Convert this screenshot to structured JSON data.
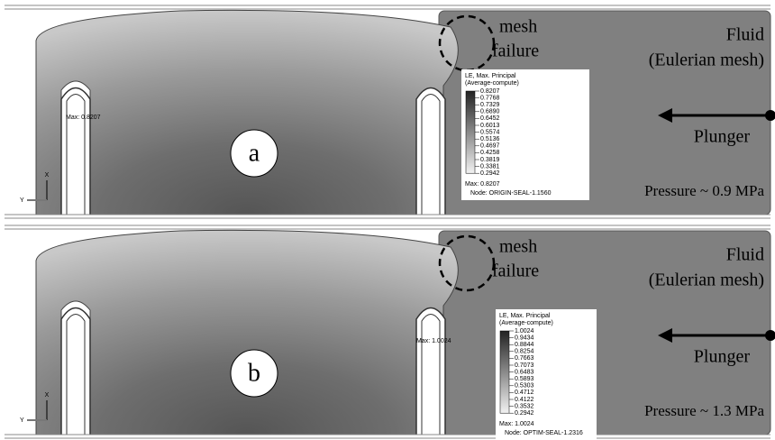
{
  "panels": [
    {
      "label": "a",
      "mesh": [
        "mesh",
        "failure"
      ],
      "fluid": [
        "Fluid",
        "(Eulerian mesh)"
      ],
      "plunger": "Plunger",
      "pressure": "Pressure ~ 0.9 MPa",
      "legend": {
        "title": [
          "LE, Max. Principal",
          "(Average-compute)"
        ],
        "values": [
          "0.8207",
          "0.7768",
          "0.7329",
          "0.6890",
          "0.6452",
          "0.6013",
          "0.5574",
          "0.5136",
          "0.4697",
          "0.4258",
          "0.3819",
          "0.3381",
          "0.2942"
        ],
        "max": "Max: 0.8207",
        "node": "Node: ORIGIN-SEAL-1.1560"
      },
      "max_marker": "Max: 0.8207",
      "axes": [
        "X",
        "Y"
      ]
    },
    {
      "label": "b",
      "mesh": [
        "mesh",
        "failure"
      ],
      "fluid": [
        "Fluid",
        "(Eulerian mesh)"
      ],
      "plunger": "Plunger",
      "pressure": "Pressure ~ 1.3 MPa",
      "legend": {
        "title": [
          "LE, Max. Principal",
          "(Average-compute)"
        ],
        "values": [
          "1.0024",
          "0.9434",
          "0.8844",
          "0.8254",
          "0.7663",
          "0.7073",
          "0.6483",
          "0.5893",
          "0.5303",
          "0.4712",
          "0.4122",
          "0.3532",
          "0.2942"
        ],
        "max": "Max: 1.0024",
        "node": "Node: OPTIM-SEAL-1.2316"
      },
      "max_marker": "Max: 1.0024",
      "axes": [
        "X",
        "Y"
      ]
    }
  ]
}
